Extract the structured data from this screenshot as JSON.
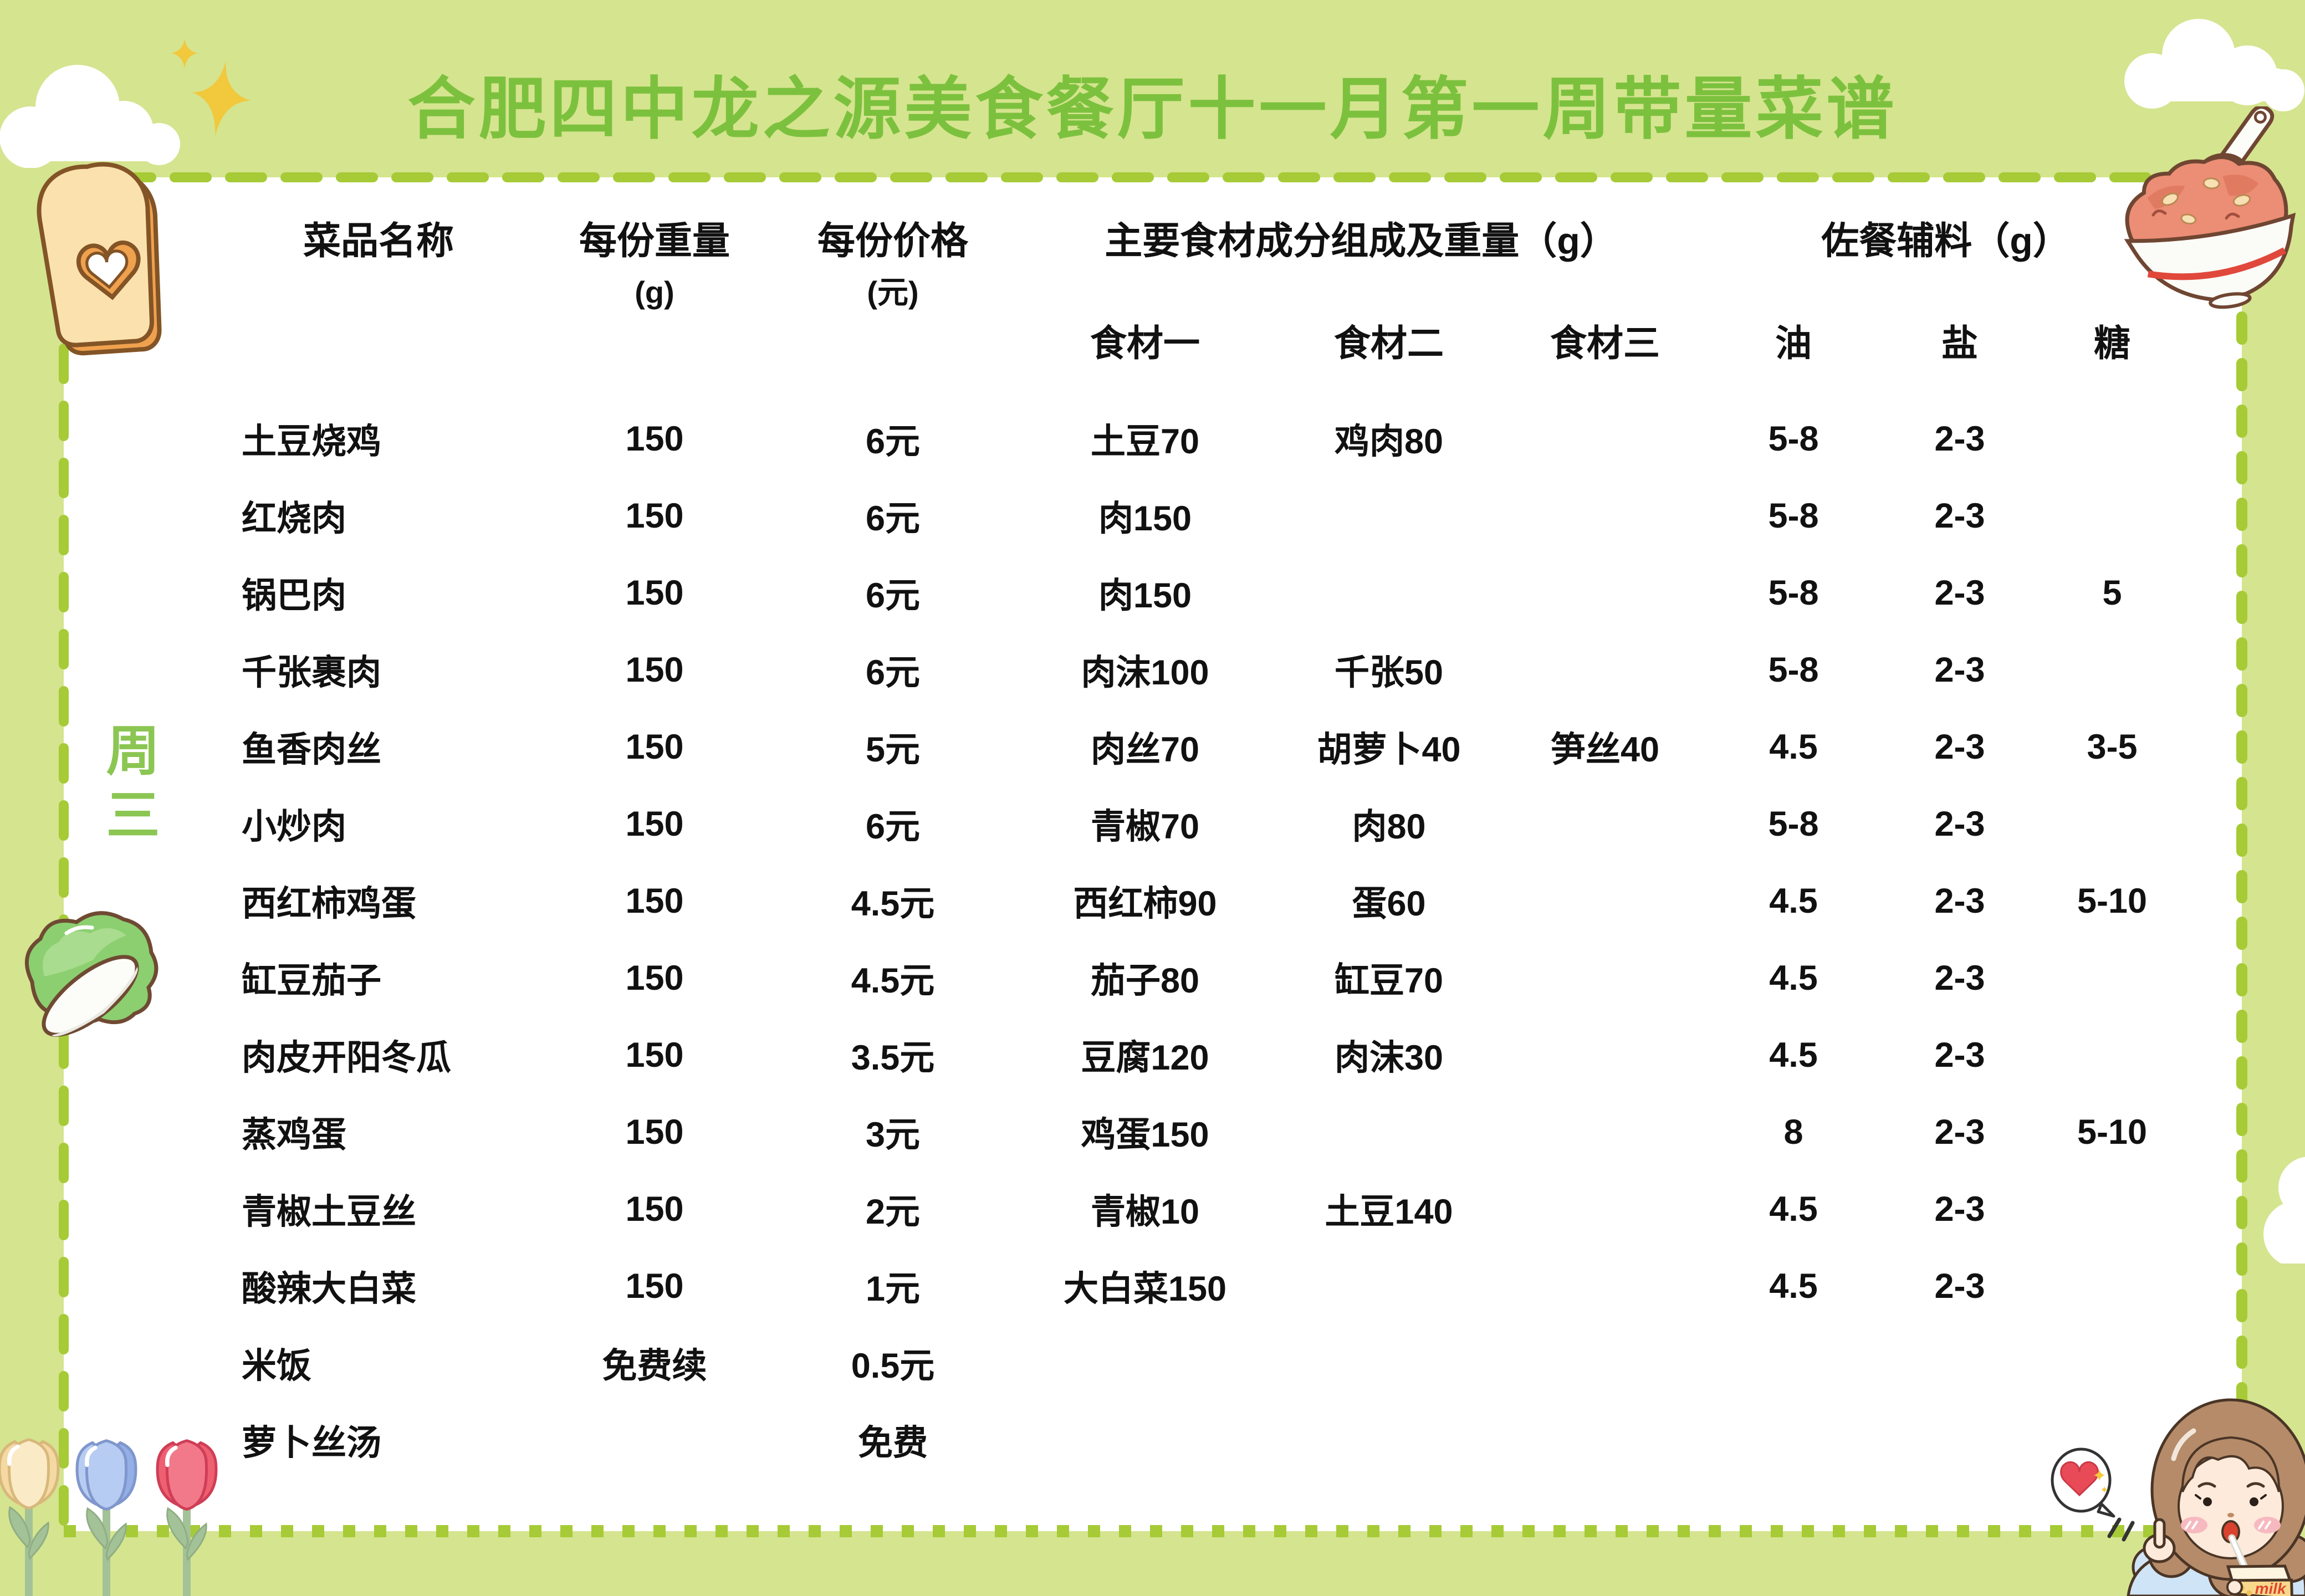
{
  "title": "合肥四中龙之源美食餐厅十一月第一周带量菜谱",
  "week_label": {
    "line1": "周",
    "line2": "三"
  },
  "table": {
    "header": {
      "dish": "菜品名称",
      "weight_line1": "每份重量",
      "weight_line2": "(g)",
      "price_line1": "每份价格",
      "price_line2": "(元)",
      "main_ingredients": "主要食材成分组成及重量（g）",
      "condiments": "佐餐辅料（g）",
      "sub": {
        "ing1": "食材一",
        "ing2": "食材二",
        "ing3": "食材三",
        "oil": "油",
        "salt": "盐",
        "sugar": "糖"
      }
    },
    "rows": [
      {
        "name": "土豆烧鸡",
        "weight": "150",
        "price": "6元",
        "ing1": "土豆70",
        "ing2": "鸡肉80",
        "ing3": "",
        "oil": "5-8",
        "salt": "2-3",
        "sugar": ""
      },
      {
        "name": "红烧肉",
        "weight": "150",
        "price": "6元",
        "ing1": "肉150",
        "ing2": "",
        "ing3": "",
        "oil": "5-8",
        "salt": "2-3",
        "sugar": ""
      },
      {
        "name": "锅巴肉",
        "weight": "150",
        "price": "6元",
        "ing1": "肉150",
        "ing2": "",
        "ing3": "",
        "oil": "5-8",
        "salt": "2-3",
        "sugar": "5"
      },
      {
        "name": "千张裹肉",
        "weight": "150",
        "price": "6元",
        "ing1": "肉沫100",
        "ing2": "千张50",
        "ing3": "",
        "oil": "5-8",
        "salt": "2-3",
        "sugar": ""
      },
      {
        "name": "鱼香肉丝",
        "weight": "150",
        "price": "5元",
        "ing1": "肉丝70",
        "ing2": "胡萝卜40",
        "ing3": "笋丝40",
        "oil": "4.5",
        "salt": "2-3",
        "sugar": "3-5"
      },
      {
        "name": "小炒肉",
        "weight": "150",
        "price": "6元",
        "ing1": "青椒70",
        "ing2": "肉80",
        "ing3": "",
        "oil": "5-8",
        "salt": "2-3",
        "sugar": ""
      },
      {
        "name": "西红柿鸡蛋",
        "weight": "150",
        "price": "4.5元",
        "ing1": "西红柿90",
        "ing2": "蛋60",
        "ing3": "",
        "oil": "4.5",
        "salt": "2-3",
        "sugar": "5-10"
      },
      {
        "name": "缸豆茄子",
        "weight": "150",
        "price": "4.5元",
        "ing1": "茄子80",
        "ing2": "缸豆70",
        "ing3": "",
        "oil": "4.5",
        "salt": "2-3",
        "sugar": ""
      },
      {
        "name": "肉皮开阳冬瓜",
        "weight": "150",
        "price": "3.5元",
        "ing1": "豆腐120",
        "ing2": "肉沫30",
        "ing3": "",
        "oil": "4.5",
        "salt": "2-3",
        "sugar": ""
      },
      {
        "name": "蒸鸡蛋",
        "weight": "150",
        "price": "3元",
        "ing1": "鸡蛋150",
        "ing2": "",
        "ing3": "",
        "oil": "8",
        "salt": "2-3",
        "sugar": "5-10"
      },
      {
        "name": "青椒土豆丝",
        "weight": "150",
        "price": "2元",
        "ing1": "青椒10",
        "ing2": "土豆140",
        "ing3": "",
        "oil": "4.5",
        "salt": "2-3",
        "sugar": ""
      },
      {
        "name": "酸辣大白菜",
        "weight": "150",
        "price": "1元",
        "ing1": "大白菜150",
        "ing2": "",
        "ing3": "",
        "oil": "4.5",
        "salt": "2-3",
        "sugar": ""
      },
      {
        "name": "米饭",
        "weight": "免费续",
        "price": "0.5元",
        "ing1": "",
        "ing2": "",
        "ing3": "",
        "oil": "",
        "salt": "",
        "sugar": ""
      },
      {
        "name": "萝卜丝汤",
        "weight": "",
        "price": "免费",
        "ing1": "",
        "ing2": "",
        "ing3": "",
        "oil": "",
        "salt": "",
        "sugar": ""
      }
    ]
  },
  "decorations": {
    "milk_label": "milk",
    "icons": [
      "cloud-icon",
      "sparkle-icon",
      "toast-heart-icon",
      "rice-bowl-icon",
      "cabbage-icon",
      "tulip-icon",
      "girl-drinking-milk-icon",
      "heart-speech-bubble-icon"
    ]
  },
  "colors": {
    "background": "#d5e48f",
    "panel": "#ffffff",
    "dash_border": "#a6cb36",
    "title_green": "#7cc13e",
    "week_green": "#8bc653",
    "text": "#111111",
    "sparkle_yellow": "#f2c83c",
    "heart_red": "#e84b57"
  }
}
